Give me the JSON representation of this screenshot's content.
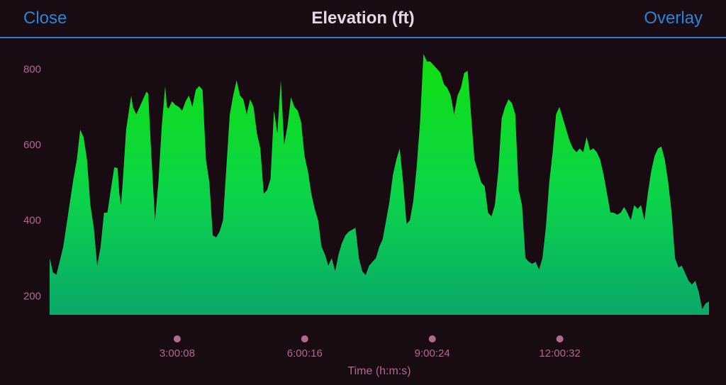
{
  "header": {
    "close_label": "Close",
    "title": "Elevation (ft)",
    "overlay_label": "Overlay"
  },
  "colors": {
    "background": "#180b12",
    "accent": "#2e83d6",
    "axis_text": "#b06a8c",
    "fill_top": "#10e010",
    "fill_bottom": "#0aa86a"
  },
  "chart_data": {
    "type": "area",
    "title": "Elevation (ft)",
    "xlabel": "Time (h:m:s)",
    "ylabel": "",
    "ylim": [
      150,
      870
    ],
    "xlim": [
      0,
      15.1
    ],
    "yticks": [
      200,
      400,
      600,
      800
    ],
    "xticks": [
      {
        "value": 3.0022,
        "label": "3:00:08"
      },
      {
        "value": 6.0044,
        "label": "6:00:16"
      },
      {
        "value": 9.0067,
        "label": "9:00:24"
      },
      {
        "value": 12.0089,
        "label": "12:00:32"
      }
    ],
    "grid": false,
    "series": [
      {
        "values": [
          [
            0.0,
            300
          ],
          [
            0.08,
            262
          ],
          [
            0.16,
            256
          ],
          [
            0.32,
            330
          ],
          [
            0.48,
            450
          ],
          [
            0.56,
            510
          ],
          [
            0.64,
            560
          ],
          [
            0.72,
            640
          ],
          [
            0.8,
            620
          ],
          [
            0.88,
            560
          ],
          [
            0.96,
            440
          ],
          [
            1.04,
            380
          ],
          [
            1.12,
            280
          ],
          [
            1.2,
            330
          ],
          [
            1.28,
            420
          ],
          [
            1.36,
            420
          ],
          [
            1.44,
            480
          ],
          [
            1.52,
            540
          ],
          [
            1.6,
            538
          ],
          [
            1.64,
            470
          ],
          [
            1.68,
            440
          ],
          [
            1.72,
            500
          ],
          [
            1.8,
            640
          ],
          [
            1.88,
            700
          ],
          [
            1.92,
            730
          ],
          [
            1.96,
            700
          ],
          [
            2.04,
            680
          ],
          [
            2.12,
            700
          ],
          [
            2.2,
            720
          ],
          [
            2.28,
            740
          ],
          [
            2.32,
            735
          ],
          [
            2.4,
            560
          ],
          [
            2.48,
            400
          ],
          [
            2.56,
            500
          ],
          [
            2.64,
            650
          ],
          [
            2.72,
            755
          ],
          [
            2.76,
            700
          ],
          [
            2.8,
            695
          ],
          [
            2.88,
            715
          ],
          [
            2.96,
            705
          ],
          [
            3.04,
            700
          ],
          [
            3.12,
            690
          ],
          [
            3.2,
            715
          ],
          [
            3.28,
            730
          ],
          [
            3.36,
            700
          ],
          [
            3.44,
            745
          ],
          [
            3.52,
            755
          ],
          [
            3.6,
            745
          ],
          [
            3.68,
            560
          ],
          [
            3.76,
            500
          ],
          [
            3.84,
            360
          ],
          [
            3.92,
            355
          ],
          [
            4.0,
            370
          ],
          [
            4.08,
            400
          ],
          [
            4.16,
            540
          ],
          [
            4.24,
            680
          ],
          [
            4.32,
            730
          ],
          [
            4.4,
            770
          ],
          [
            4.48,
            730
          ],
          [
            4.56,
            720
          ],
          [
            4.64,
            680
          ],
          [
            4.72,
            720
          ],
          [
            4.8,
            700
          ],
          [
            4.88,
            630
          ],
          [
            4.96,
            590
          ],
          [
            5.04,
            470
          ],
          [
            5.12,
            480
          ],
          [
            5.2,
            510
          ],
          [
            5.28,
            690
          ],
          [
            5.36,
            630
          ],
          [
            5.44,
            770
          ],
          [
            5.52,
            600
          ],
          [
            5.6,
            650
          ],
          [
            5.68,
            725
          ],
          [
            5.76,
            700
          ],
          [
            5.84,
            690
          ],
          [
            5.92,
            660
          ],
          [
            6.0,
            570
          ],
          [
            6.08,
            530
          ],
          [
            6.16,
            470
          ],
          [
            6.24,
            430
          ],
          [
            6.32,
            400
          ],
          [
            6.4,
            330
          ],
          [
            6.48,
            310
          ],
          [
            6.56,
            280
          ],
          [
            6.64,
            300
          ],
          [
            6.72,
            265
          ],
          [
            6.8,
            310
          ],
          [
            6.88,
            340
          ],
          [
            6.96,
            360
          ],
          [
            7.04,
            370
          ],
          [
            7.12,
            375
          ],
          [
            7.2,
            380
          ],
          [
            7.28,
            300
          ],
          [
            7.36,
            265
          ],
          [
            7.44,
            255
          ],
          [
            7.52,
            280
          ],
          [
            7.6,
            290
          ],
          [
            7.68,
            300
          ],
          [
            7.76,
            330
          ],
          [
            7.84,
            350
          ],
          [
            7.92,
            400
          ],
          [
            8.0,
            450
          ],
          [
            8.08,
            520
          ],
          [
            8.16,
            560
          ],
          [
            8.24,
            590
          ],
          [
            8.32,
            500
          ],
          [
            8.4,
            390
          ],
          [
            8.48,
            400
          ],
          [
            8.56,
            450
          ],
          [
            8.64,
            540
          ],
          [
            8.72,
            660
          ],
          [
            8.8,
            840
          ],
          [
            8.88,
            820
          ],
          [
            8.96,
            820
          ],
          [
            9.04,
            810
          ],
          [
            9.12,
            800
          ],
          [
            9.2,
            790
          ],
          [
            9.28,
            760
          ],
          [
            9.36,
            750
          ],
          [
            9.44,
            730
          ],
          [
            9.52,
            680
          ],
          [
            9.6,
            730
          ],
          [
            9.68,
            750
          ],
          [
            9.76,
            790
          ],
          [
            9.84,
            795
          ],
          [
            9.92,
            680
          ],
          [
            10.0,
            560
          ],
          [
            10.08,
            530
          ],
          [
            10.16,
            500
          ],
          [
            10.24,
            490
          ],
          [
            10.32,
            420
          ],
          [
            10.4,
            410
          ],
          [
            10.48,
            440
          ],
          [
            10.56,
            530
          ],
          [
            10.64,
            670
          ],
          [
            10.72,
            700
          ],
          [
            10.8,
            720
          ],
          [
            10.88,
            710
          ],
          [
            10.96,
            680
          ],
          [
            11.04,
            480
          ],
          [
            11.12,
            440
          ],
          [
            11.2,
            300
          ],
          [
            11.28,
            290
          ],
          [
            11.36,
            285
          ],
          [
            11.44,
            290
          ],
          [
            11.52,
            270
          ],
          [
            11.6,
            300
          ],
          [
            11.68,
            380
          ],
          [
            11.76,
            500
          ],
          [
            11.84,
            580
          ],
          [
            11.92,
            680
          ],
          [
            12.0,
            700
          ],
          [
            12.08,
            670
          ],
          [
            12.16,
            640
          ],
          [
            12.24,
            610
          ],
          [
            12.32,
            590
          ],
          [
            12.4,
            580
          ],
          [
            12.48,
            590
          ],
          [
            12.56,
            580
          ],
          [
            12.64,
            620
          ],
          [
            12.72,
            585
          ],
          [
            12.8,
            590
          ],
          [
            12.88,
            580
          ],
          [
            12.96,
            560
          ],
          [
            13.04,
            520
          ],
          [
            13.12,
            470
          ],
          [
            13.2,
            420
          ],
          [
            13.28,
            420
          ],
          [
            13.36,
            415
          ],
          [
            13.44,
            420
          ],
          [
            13.52,
            435
          ],
          [
            13.6,
            420
          ],
          [
            13.68,
            400
          ],
          [
            13.76,
            440
          ],
          [
            13.84,
            430
          ],
          [
            13.92,
            440
          ],
          [
            14.0,
            400
          ],
          [
            14.08,
            470
          ],
          [
            14.16,
            530
          ],
          [
            14.24,
            570
          ],
          [
            14.32,
            590
          ],
          [
            14.4,
            595
          ],
          [
            14.48,
            560
          ],
          [
            14.56,
            500
          ],
          [
            14.64,
            420
          ],
          [
            14.72,
            300
          ],
          [
            14.8,
            275
          ],
          [
            14.88,
            280
          ],
          [
            14.96,
            260
          ],
          [
            15.04,
            240
          ],
          [
            15.12,
            230
          ],
          [
            15.2,
            240
          ],
          [
            15.28,
            210
          ],
          [
            15.36,
            165
          ],
          [
            15.44,
            180
          ],
          [
            15.52,
            185
          ]
        ]
      }
    ]
  }
}
